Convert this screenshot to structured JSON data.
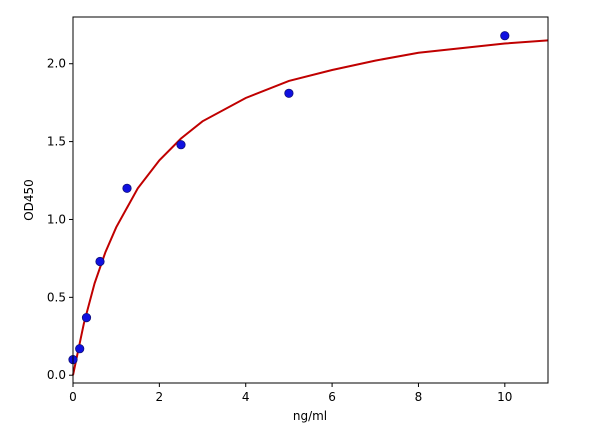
{
  "chart_data": {
    "type": "scatter",
    "xlabel": "ng/ml",
    "ylabel": "OD450",
    "xlim": [
      0,
      11
    ],
    "ylim": [
      -0.05,
      2.3
    ],
    "xticks": [
      0,
      2,
      4,
      6,
      8,
      10
    ],
    "yticks": [
      0.0,
      0.5,
      1.0,
      1.5,
      2.0
    ],
    "xtick_labels": [
      "0",
      "2",
      "4",
      "6",
      "8",
      "10"
    ],
    "ytick_labels": [
      "0.0",
      "0.5",
      "1.0",
      "1.5",
      "2.0"
    ],
    "grid": false,
    "series": [
      {
        "kind": "points",
        "color": "#1010e0",
        "x": [
          0,
          0.156,
          0.3125,
          0.625,
          1.25,
          2.5,
          5,
          10
        ],
        "y": [
          0.1,
          0.17,
          0.37,
          0.73,
          1.2,
          1.48,
          1.81,
          2.18
        ]
      },
      {
        "kind": "fitted-curve",
        "color": "#c00000",
        "x": [
          0,
          0.25,
          0.5,
          0.75,
          1,
          1.5,
          2,
          2.5,
          3,
          4,
          5,
          6,
          7,
          8,
          9,
          10,
          11
        ],
        "y": [
          0.0,
          0.33,
          0.59,
          0.79,
          0.95,
          1.2,
          1.38,
          1.52,
          1.63,
          1.78,
          1.89,
          1.96,
          2.02,
          2.07,
          2.1,
          2.13,
          2.15
        ]
      }
    ]
  }
}
